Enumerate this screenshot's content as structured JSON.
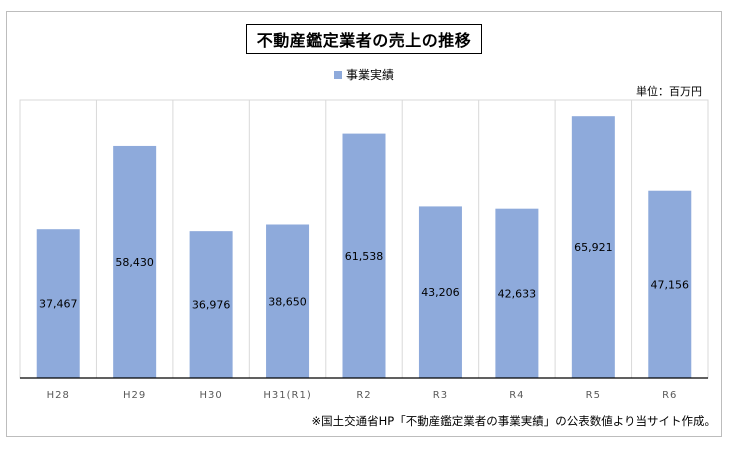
{
  "chart_data": {
    "type": "bar",
    "title": "不動産鑑定業者の売上の推移",
    "legend": [
      "事業実績"
    ],
    "unit_label": "単位：百万円",
    "categories": [
      "H28",
      "H29",
      "H30",
      "H31(R1)",
      "R2",
      "R3",
      "R4",
      "R5",
      "R6"
    ],
    "series": [
      {
        "name": "事業実績",
        "values": [
          37467,
          58430,
          36976,
          38650,
          61538,
          43206,
          42633,
          65921,
          47156
        ],
        "labels": [
          "37,467",
          "58,430",
          "36,976",
          "38,650",
          "61,538",
          "43,206",
          "42,633",
          "65,921",
          "47,156"
        ]
      }
    ],
    "ylim": [
      0,
      70000
    ],
    "grid": "vertical",
    "legend_position": "top-center",
    "bar_color": "#8eaadb"
  },
  "footnote": "※国土交通省HP「不動産鑑定業者の事業実績」の公表数値より当サイト作成。"
}
